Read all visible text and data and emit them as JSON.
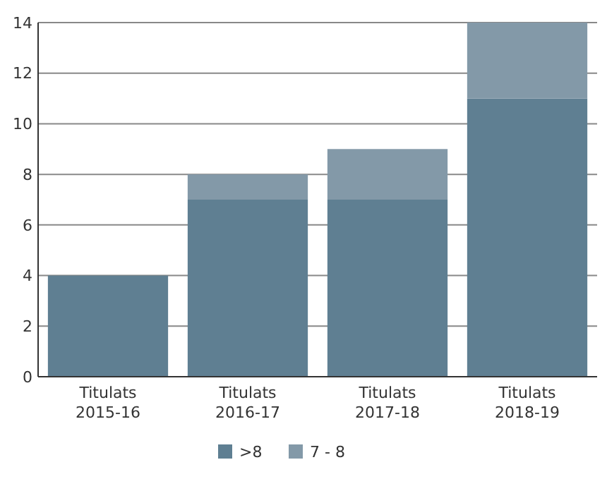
{
  "chart_data": {
    "type": "bar",
    "stacked": true,
    "categories": [
      "Titulats\n2015-16",
      "Titulats\n2016-17",
      "Titulats\n2017-18",
      "Titulats\n2018-19"
    ],
    "series": [
      {
        "name": ">8",
        "color": "#5f7f92",
        "values": [
          4,
          7,
          7,
          11
        ]
      },
      {
        "name": "7 - 8",
        "color": "#8399a8",
        "values": [
          0,
          1,
          2,
          3
        ]
      }
    ],
    "ylim": [
      0,
      14
    ],
    "yticks": [
      0,
      2,
      4,
      6,
      8,
      10,
      12,
      14
    ],
    "grid": "y",
    "legend": "bottom"
  }
}
